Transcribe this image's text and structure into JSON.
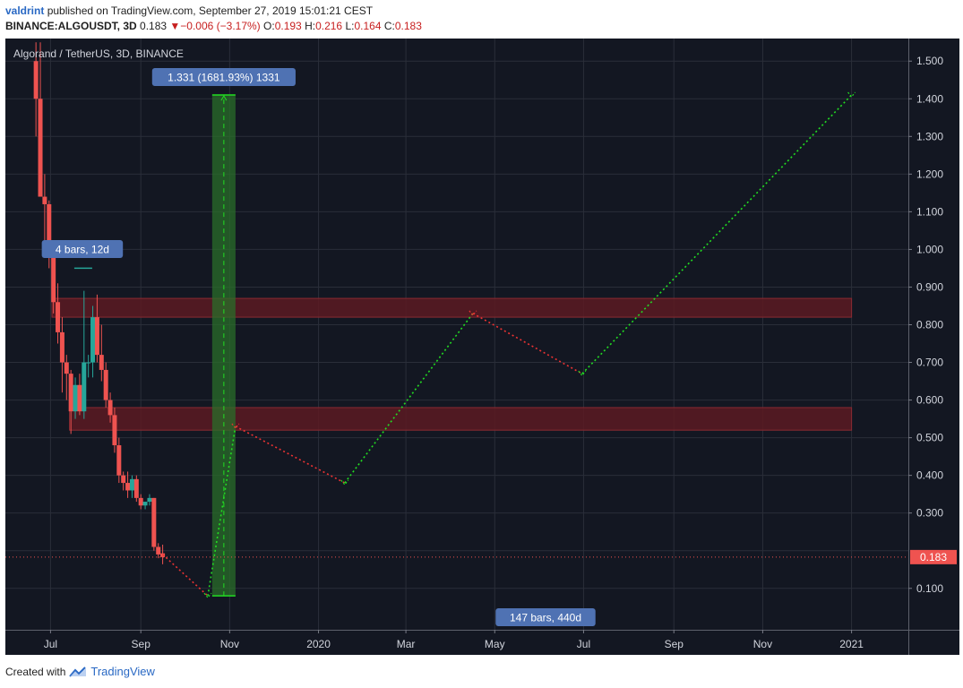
{
  "header": {
    "user": "valdrint",
    "published_text": "published on TradingView.com, September 27, 2019 15:01:21 CEST",
    "symbol": "BINANCE:ALGOUSDT, 3D",
    "last": "0.183",
    "change": "−0.006 (−3.17%)",
    "ohlc": [
      {
        "label": "O:",
        "value": "0.193"
      },
      {
        "label": "H:",
        "value": "0.216"
      },
      {
        "label": "L:",
        "value": "0.164"
      },
      {
        "label": "C:",
        "value": "0.183"
      }
    ]
  },
  "footer": {
    "created_text": "Created with",
    "brand": "TradingView"
  },
  "colors": {
    "background": "#131722",
    "grid": "#2a2e39",
    "up": "#26a69a",
    "down": "#ef5350",
    "zone_fill": "#5c1a22",
    "zone_border": "#8a2a32",
    "measure_fill": "#2a6e2a",
    "green_path": "#22dd22",
    "red_path": "#ee3333",
    "label_bg": "#4f72b3",
    "price_tag": "#ef5350"
  },
  "chart_data": {
    "type": "candlestick",
    "title": "Algorand / TetherUS, 3D, BINANCE",
    "x_tick_labels": [
      "Jul",
      "Sep",
      "Nov",
      "2020",
      "Mar",
      "May",
      "Jul",
      "Sep",
      "Nov",
      "2021"
    ],
    "y_tick_labels": [
      "1.500",
      "1.400",
      "1.300",
      "1.200",
      "1.100",
      "1.000",
      "0.900",
      "0.800",
      "0.700",
      "0.600",
      "0.500",
      "0.400",
      "0.300",
      "0.100"
    ],
    "ylim": [
      -0.01,
      1.56
    ],
    "last_price": 0.183,
    "last_price_label": "0.183",
    "candles": [
      {
        "d": "2019-06-21",
        "o": 1.5,
        "h": 1.55,
        "l": 1.3,
        "c": 1.4
      },
      {
        "d": "2019-06-24",
        "o": 1.4,
        "h": 1.55,
        "l": 1.14,
        "c": 1.14
      },
      {
        "d": "2019-06-27",
        "o": 1.14,
        "h": 1.2,
        "l": 0.98,
        "c": 1.12
      },
      {
        "d": "2019-06-30",
        "o": 1.12,
        "h": 1.13,
        "l": 0.95,
        "c": 1.0
      },
      {
        "d": "2019-07-03",
        "o": 1.0,
        "h": 1.01,
        "l": 0.83,
        "c": 0.86
      },
      {
        "d": "2019-07-06",
        "o": 0.86,
        "h": 0.91,
        "l": 0.75,
        "c": 0.78
      },
      {
        "d": "2019-07-09",
        "o": 0.78,
        "h": 0.82,
        "l": 0.62,
        "c": 0.7
      },
      {
        "d": "2019-07-12",
        "o": 0.7,
        "h": 0.72,
        "l": 0.6,
        "c": 0.67
      },
      {
        "d": "2019-07-15",
        "o": 0.67,
        "h": 0.68,
        "l": 0.51,
        "c": 0.57
      },
      {
        "d": "2019-07-18",
        "o": 0.57,
        "h": 0.66,
        "l": 0.55,
        "c": 0.64
      },
      {
        "d": "2019-07-21",
        "o": 0.64,
        "h": 0.67,
        "l": 0.56,
        "c": 0.57
      },
      {
        "d": "2019-07-24",
        "o": 0.57,
        "h": 0.89,
        "l": 0.55,
        "c": 0.7
      },
      {
        "d": "2019-07-27",
        "o": 0.7,
        "h": 0.72,
        "l": 0.66,
        "c": 0.7
      },
      {
        "d": "2019-07-30",
        "o": 0.7,
        "h": 0.85,
        "l": 0.66,
        "c": 0.82
      },
      {
        "d": "2019-08-02",
        "o": 0.82,
        "h": 0.88,
        "l": 0.7,
        "c": 0.72
      },
      {
        "d": "2019-08-05",
        "o": 0.72,
        "h": 0.8,
        "l": 0.65,
        "c": 0.68
      },
      {
        "d": "2019-08-08",
        "o": 0.68,
        "h": 0.7,
        "l": 0.58,
        "c": 0.6
      },
      {
        "d": "2019-08-11",
        "o": 0.6,
        "h": 0.62,
        "l": 0.54,
        "c": 0.56
      },
      {
        "d": "2019-08-14",
        "o": 0.56,
        "h": 0.58,
        "l": 0.46,
        "c": 0.48
      },
      {
        "d": "2019-08-17",
        "o": 0.48,
        "h": 0.5,
        "l": 0.38,
        "c": 0.4
      },
      {
        "d": "2019-08-20",
        "o": 0.4,
        "h": 0.41,
        "l": 0.36,
        "c": 0.38
      },
      {
        "d": "2019-08-23",
        "o": 0.38,
        "h": 0.41,
        "l": 0.34,
        "c": 0.36
      },
      {
        "d": "2019-08-26",
        "o": 0.36,
        "h": 0.4,
        "l": 0.34,
        "c": 0.39
      },
      {
        "d": "2019-08-29",
        "o": 0.39,
        "h": 0.4,
        "l": 0.33,
        "c": 0.34
      },
      {
        "d": "2019-09-01",
        "o": 0.34,
        "h": 0.35,
        "l": 0.31,
        "c": 0.32
      },
      {
        "d": "2019-09-04",
        "o": 0.32,
        "h": 0.33,
        "l": 0.31,
        "c": 0.33
      },
      {
        "d": "2019-09-07",
        "o": 0.33,
        "h": 0.35,
        "l": 0.32,
        "c": 0.34
      },
      {
        "d": "2019-09-10",
        "o": 0.34,
        "h": 0.34,
        "l": 0.2,
        "c": 0.21
      },
      {
        "d": "2019-09-13",
        "o": 0.21,
        "h": 0.22,
        "l": 0.18,
        "c": 0.19
      },
      {
        "d": "2019-09-16",
        "o": 0.193,
        "h": 0.216,
        "l": 0.164,
        "c": 0.183
      }
    ],
    "zones": [
      {
        "from": "2019-07-02",
        "to": "2021-01-01",
        "low": 0.82,
        "high": 0.87
      },
      {
        "from": "2019-07-14",
        "to": "2021-01-01",
        "low": 0.52,
        "high": 0.58
      }
    ],
    "measure": {
      "from": "2019-10-20",
      "to": "2019-11-05",
      "low": 0.08,
      "high": 1.41,
      "label": "1.331 (1681.93%) 1331"
    },
    "bars_label": {
      "d": "2019-07-21",
      "value": 0.95,
      "label": "4 bars, 12d"
    },
    "bottom_label": "147 bars, 440d",
    "path": [
      {
        "d": "2019-09-16",
        "v": 0.19
      },
      {
        "d": "2019-10-17",
        "v": 0.08
      },
      {
        "d": "2019-11-05",
        "v": 0.53
      },
      {
        "d": "2020-01-19",
        "v": 0.38
      },
      {
        "d": "2020-04-16",
        "v": 0.83
      },
      {
        "d": "2020-06-30",
        "v": 0.67
      },
      {
        "d": "2021-01-01",
        "v": 1.41
      }
    ],
    "path_colors": [
      "red",
      "green",
      "red",
      "green",
      "red",
      "green"
    ]
  }
}
